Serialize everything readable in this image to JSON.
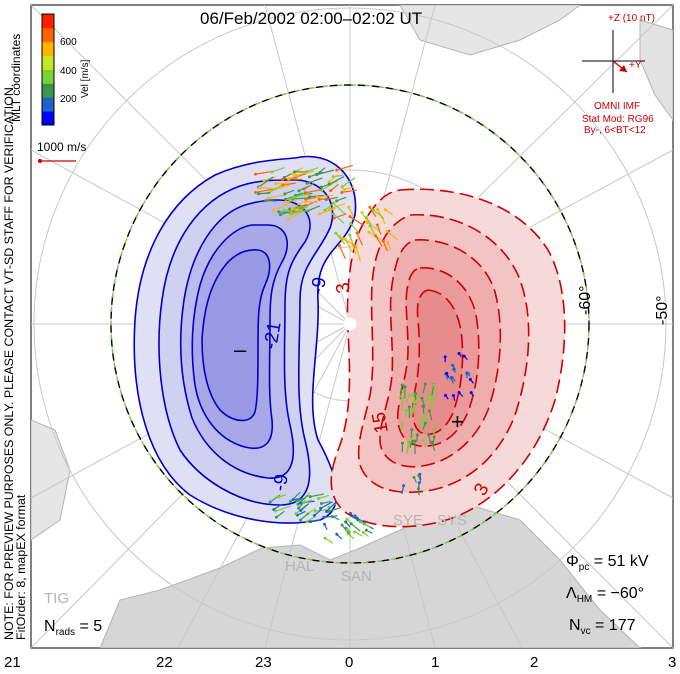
{
  "title": "06/Feb/2002 02:00–02:02 UT",
  "note_line1": "NOTE: FOR PREVIEW PURPOSES ONLY. PLEASE CONTACT VT-SD STAFF FOR VERIFICATION.",
  "note_line2": "FitOrder: 8, mapEX format",
  "coords_label": "MLT coordinates",
  "colorbar": {
    "unit_label": "Vel [m/s]",
    "ticks": [
      "600",
      "400",
      "200"
    ],
    "colors": [
      "#0000ff",
      "#1e64c8",
      "#3c9650",
      "#78d232",
      "#c8e628",
      "#ffb400",
      "#ff6400",
      "#ff1e00"
    ]
  },
  "scale_vector_label": "1000 m/s",
  "imf": {
    "z_label": "+Z (10 nT)",
    "y_label": "+Y",
    "source": "OMNI IMF",
    "model_line1": "Stat Mod: RG96",
    "model_line2": "By-, 6<BT<12"
  },
  "lat_labels": [
    "-60°",
    "-50°"
  ],
  "mlt_labels": [
    "21",
    "22",
    "23",
    "0",
    "1",
    "2",
    "3"
  ],
  "contour_labels": [
    "-21",
    "-9",
    "-9",
    "3",
    "15",
    "3"
  ],
  "potential_extrema": {
    "min_symbol": "–",
    "max_symbol": "+"
  },
  "stats": {
    "phi_pc_prefix": "Φ",
    "phi_pc_sub": "pc",
    "phi_pc_value": "= 51 kV",
    "lambda_hm_prefix": "Λ",
    "lambda_hm_sub": "HM",
    "lambda_hm_value": "= −60°",
    "n_vc_prefix": "N",
    "n_vc_sub": "vc",
    "n_vc_value": "= 177",
    "n_rads_prefix": "N",
    "n_rads_sub": "rads",
    "n_rads_value": "= 5"
  },
  "radar_labels": [
    "SYE",
    "SYS",
    "HAL",
    "SAN",
    "TIG"
  ],
  "colors": {
    "negative_fill": "#8c8cf0",
    "positive_fill": "#f08c8c",
    "negative_line": "#0000c8",
    "positive_line": "#d00000",
    "hm_boundary_green": "#7ccc3c",
    "land": "#cfcfcf",
    "grid": "#c8c8c8"
  }
}
